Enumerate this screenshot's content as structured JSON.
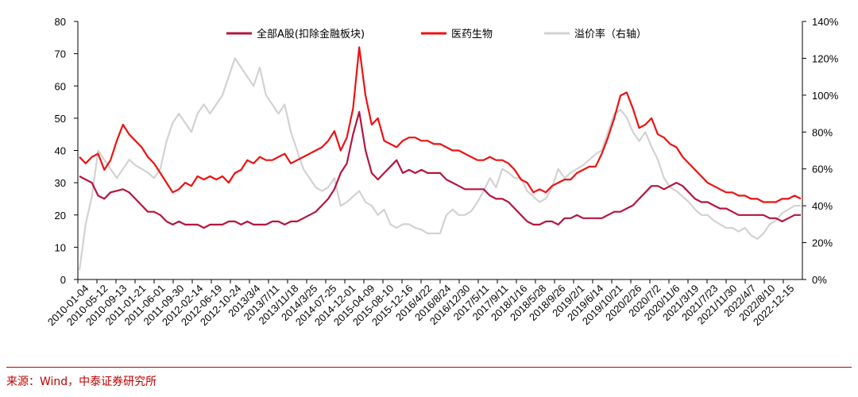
{
  "chart_data": {
    "type": "line",
    "source": "来源：Wind，中泰证券研究所",
    "left_axis": {
      "ticks": [
        0,
        10,
        20,
        30,
        40,
        50,
        60,
        70,
        80
      ],
      "range": [
        0,
        80
      ]
    },
    "right_axis": {
      "ticks": [
        "0%",
        "20%",
        "40%",
        "60%",
        "80%",
        "100%",
        "120%",
        "140%"
      ],
      "range": [
        0,
        140
      ]
    },
    "x_tick_labels": [
      "2010-01-04",
      "2010-05-12",
      "2010-09-13",
      "2011-01-21",
      "2011-06-01",
      "2011-09-30",
      "2012-02-14",
      "2012-06-19",
      "2012-10-24",
      "2013/3/4",
      "2013/7/11",
      "2013/11/18",
      "2014/3/25",
      "2014-07-25",
      "2014-12-01",
      "2015-04-09",
      "2015-08-10",
      "2015-12-16",
      "2016/4/22",
      "2016/8/24",
      "2016/12/30",
      "2017/5/11",
      "2017/9/11",
      "2018/1/16",
      "2018/5/28",
      "2018/9/26",
      "2019/2/1",
      "2019/6/14",
      "2019/10/21",
      "2020/2/26",
      "2020/7/2",
      "2020/11/6",
      "2021/3/19",
      "2021/7/23",
      "2021/11/30",
      "2022/4/7",
      "2022/8/10",
      "2022-12-15"
    ],
    "series": [
      {
        "name": "全部A股(扣除金融板块)",
        "axis": "left",
        "color": "#b5153f",
        "values": [
          32,
          31,
          30,
          26,
          25,
          27,
          27.5,
          28,
          27,
          25,
          23,
          21,
          21,
          20,
          18,
          17,
          18,
          17,
          17,
          17,
          16,
          17,
          17,
          17,
          18,
          18,
          17,
          18,
          17,
          17,
          17,
          18,
          18,
          17,
          18,
          18,
          19,
          20,
          21,
          23,
          25,
          28,
          33,
          36,
          45,
          52,
          40,
          33,
          31,
          33,
          35,
          37,
          33,
          34,
          33,
          34,
          33,
          33,
          33,
          31,
          30,
          29,
          28,
          28,
          28,
          28,
          26,
          25,
          25,
          24,
          22,
          20,
          18,
          17,
          17,
          18,
          18,
          17,
          19,
          19,
          20,
          19,
          19,
          19,
          19,
          20,
          21,
          21,
          22,
          23,
          25,
          27,
          29,
          29,
          28,
          29,
          30,
          29,
          27,
          25,
          24,
          24,
          23,
          22,
          22,
          21,
          20,
          20,
          20,
          20,
          20,
          19,
          19,
          18,
          19,
          20,
          20
        ]
      },
      {
        "name": "医药生物",
        "axis": "left",
        "color": "#ee1111",
        "values": [
          38,
          36,
          38,
          39,
          34,
          37,
          43,
          48,
          45,
          43,
          41,
          38,
          36,
          33,
          30,
          27,
          28,
          30,
          29,
          32,
          31,
          32,
          31,
          32,
          30,
          33,
          34,
          37,
          36,
          38,
          37,
          37,
          38,
          39,
          36,
          37,
          38,
          39,
          40,
          41,
          43,
          46,
          40,
          44,
          53,
          72,
          57,
          48,
          50,
          43,
          42,
          41,
          43,
          44,
          44,
          43,
          43,
          42,
          42,
          41,
          40,
          40,
          39,
          38,
          37,
          37,
          38,
          37,
          37,
          36,
          34,
          31,
          30,
          27,
          28,
          27,
          29,
          30,
          31,
          31,
          33,
          34,
          35,
          35,
          39,
          44,
          50,
          57,
          58,
          53,
          47,
          48,
          50,
          45,
          44,
          42,
          41,
          38,
          36,
          34,
          32,
          30,
          29,
          28,
          27,
          27,
          26,
          26,
          25,
          25,
          24,
          24,
          24,
          25,
          25,
          26,
          25
        ]
      },
      {
        "name": "溢价率（右轴）",
        "axis": "right",
        "color": "#d2d2d2",
        "values": [
          5,
          30,
          45,
          70,
          65,
          60,
          55,
          60,
          65,
          62,
          60,
          58,
          55,
          60,
          75,
          85,
          90,
          85,
          80,
          90,
          95,
          90,
          95,
          100,
          110,
          120,
          115,
          110,
          105,
          115,
          100,
          95,
          90,
          95,
          80,
          70,
          60,
          55,
          50,
          48,
          50,
          55,
          40,
          42,
          45,
          48,
          42,
          40,
          35,
          38,
          30,
          28,
          30,
          30,
          28,
          27,
          25,
          25,
          25,
          35,
          38,
          35,
          35,
          37,
          42,
          48,
          55,
          50,
          60,
          58,
          55,
          55,
          48,
          45,
          42,
          44,
          50,
          60,
          55,
          58,
          60,
          62,
          65,
          68,
          70,
          80,
          90,
          92,
          88,
          80,
          75,
          80,
          72,
          65,
          55,
          50,
          48,
          45,
          42,
          38,
          35,
          35,
          32,
          30,
          28,
          28,
          26,
          28,
          24,
          22,
          25,
          30,
          32,
          36,
          38,
          40,
          40
        ]
      }
    ],
    "legend_position": "top",
    "grid": false
  }
}
